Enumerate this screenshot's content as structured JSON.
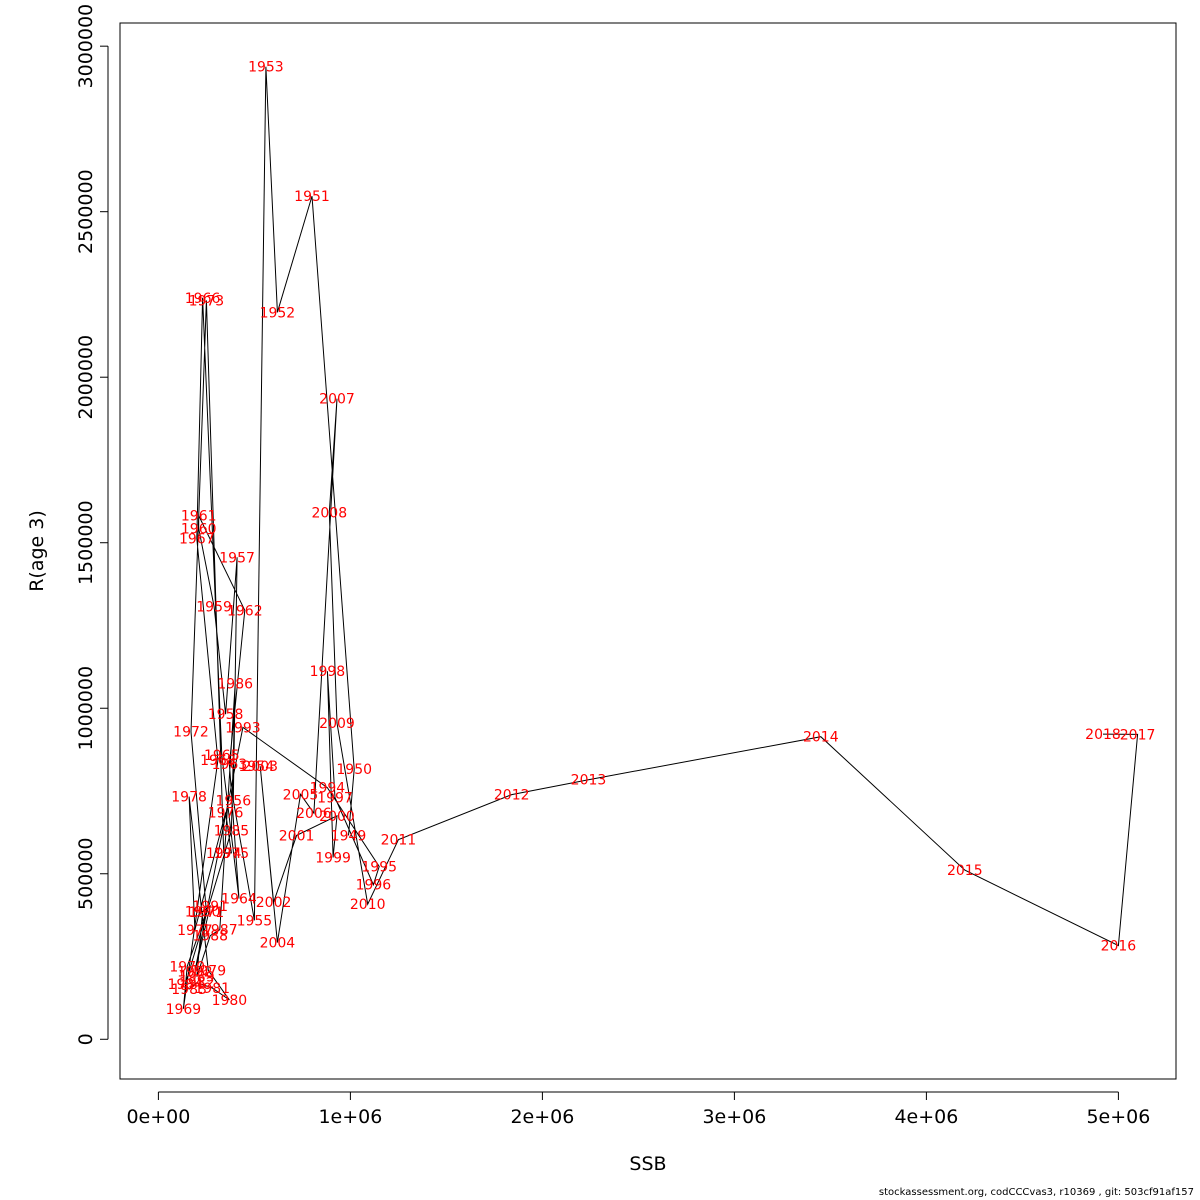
{
  "chart_data": {
    "type": "line",
    "title": "",
    "xlabel": "SSB",
    "ylabel": "R(age 3)",
    "xlim": [
      -200000,
      5300000
    ],
    "ylim": [
      -120000,
      3070000
    ],
    "x_ticks": [
      0,
      1000000,
      2000000,
      3000000,
      4000000,
      5000000
    ],
    "x_tick_labels": [
      "0e+00",
      "1e+06",
      "2e+06",
      "3e+06",
      "4e+06",
      "5e+06"
    ],
    "y_ticks": [
      0,
      500000,
      1000000,
      1500000,
      2000000,
      2500000,
      3000000
    ],
    "y_tick_labels": [
      "0",
      "500000",
      "1000000",
      "1500000",
      "2000000",
      "2500000",
      "3000000"
    ],
    "grid": false,
    "line_color": "#000000",
    "label_color": "#ff0000",
    "points": [
      {
        "year": "1949",
        "x": 990000,
        "y": 616000
      },
      {
        "year": "1950",
        "x": 1020000,
        "y": 816000
      },
      {
        "year": "1951",
        "x": 800000,
        "y": 2547000
      },
      {
        "year": "1952",
        "x": 620000,
        "y": 2196000
      },
      {
        "year": "1953",
        "x": 560000,
        "y": 2938000
      },
      {
        "year": "1954",
        "x": 510000,
        "y": 825000
      },
      {
        "year": "1955",
        "x": 500000,
        "y": 359000
      },
      {
        "year": "1956",
        "x": 390000,
        "y": 722000
      },
      {
        "year": "1957",
        "x": 410000,
        "y": 1456000
      },
      {
        "year": "1958",
        "x": 350000,
        "y": 982000
      },
      {
        "year": "1959",
        "x": 290000,
        "y": 1307000
      },
      {
        "year": "1960",
        "x": 210000,
        "y": 1543000
      },
      {
        "year": "1961",
        "x": 210000,
        "y": 1582000
      },
      {
        "year": "1962",
        "x": 450000,
        "y": 1296000
      },
      {
        "year": "1963",
        "x": 370000,
        "y": 831000
      },
      {
        "year": "1964",
        "x": 420000,
        "y": 425000
      },
      {
        "year": "1965",
        "x": 330000,
        "y": 858000
      },
      {
        "year": "1966",
        "x": 230000,
        "y": 2240000
      },
      {
        "year": "1967",
        "x": 200000,
        "y": 1513000
      },
      {
        "year": "1968",
        "x": 310000,
        "y": 843000
      },
      {
        "year": "1969",
        "x": 130000,
        "y": 92000
      },
      {
        "year": "1970",
        "x": 150000,
        "y": 220000
      },
      {
        "year": "1971",
        "x": 250000,
        "y": 385000
      },
      {
        "year": "1972",
        "x": 170000,
        "y": 929000
      },
      {
        "year": "1973",
        "x": 250000,
        "y": 2232000
      },
      {
        "year": "1974",
        "x": 340000,
        "y": 563000
      },
      {
        "year": "1975",
        "x": 380000,
        "y": 563000
      },
      {
        "year": "1976",
        "x": 350000,
        "y": 685000
      },
      {
        "year": "1977",
        "x": 190000,
        "y": 330000
      },
      {
        "year": "1978",
        "x": 160000,
        "y": 733000
      },
      {
        "year": "1979",
        "x": 260000,
        "y": 208000
      },
      {
        "year": "1980",
        "x": 370000,
        "y": 119000
      },
      {
        "year": "1981",
        "x": 280000,
        "y": 155000
      },
      {
        "year": "1982",
        "x": 200000,
        "y": 171000
      },
      {
        "year": "1983",
        "x": 160000,
        "y": 152000
      },
      {
        "year": "1984",
        "x": 140000,
        "y": 167000
      },
      {
        "year": "1985",
        "x": 380000,
        "y": 630000
      },
      {
        "year": "1986",
        "x": 400000,
        "y": 1074000
      },
      {
        "year": "1987",
        "x": 320000,
        "y": 331000
      },
      {
        "year": "1988",
        "x": 270000,
        "y": 313000
      },
      {
        "year": "1989",
        "x": 200000,
        "y": 189000
      },
      {
        "year": "1990",
        "x": 230000,
        "y": 386000
      },
      {
        "year": "1991",
        "x": 270000,
        "y": 402000
      },
      {
        "year": "1992",
        "x": 190000,
        "y": 205000
      },
      {
        "year": "1993",
        "x": 440000,
        "y": 942000
      },
      {
        "year": "1994",
        "x": 880000,
        "y": 760000
      },
      {
        "year": "1995",
        "x": 1150000,
        "y": 522000
      },
      {
        "year": "1996",
        "x": 1120000,
        "y": 467000
      },
      {
        "year": "1997",
        "x": 920000,
        "y": 730000
      },
      {
        "year": "1998",
        "x": 880000,
        "y": 1112000
      },
      {
        "year": "1999",
        "x": 910000,
        "y": 549000
      },
      {
        "year": "2000",
        "x": 930000,
        "y": 675000
      },
      {
        "year": "2001",
        "x": 720000,
        "y": 616000
      },
      {
        "year": "2002",
        "x": 600000,
        "y": 414000
      },
      {
        "year": "2003",
        "x": 530000,
        "y": 825000
      },
      {
        "year": "2004",
        "x": 620000,
        "y": 292000
      },
      {
        "year": "2005",
        "x": 740000,
        "y": 740000
      },
      {
        "year": "2006",
        "x": 810000,
        "y": 683000
      },
      {
        "year": "2007",
        "x": 930000,
        "y": 1935000
      },
      {
        "year": "2008",
        "x": 890000,
        "y": 1592000
      },
      {
        "year": "2009",
        "x": 930000,
        "y": 955000
      },
      {
        "year": "2010",
        "x": 1090000,
        "y": 408000
      },
      {
        "year": "2011",
        "x": 1250000,
        "y": 603000
      },
      {
        "year": "2012",
        "x": 1840000,
        "y": 739000
      },
      {
        "year": "2013",
        "x": 2240000,
        "y": 784000
      },
      {
        "year": "2014",
        "x": 3450000,
        "y": 914000
      },
      {
        "year": "2015",
        "x": 4200000,
        "y": 511000
      },
      {
        "year": "2016",
        "x": 5000000,
        "y": 283000
      },
      {
        "year": "2017",
        "x": 5100000,
        "y": 921000
      },
      {
        "year": "2018",
        "x": 4920000,
        "y": 922000
      }
    ]
  },
  "footer": "stockassessment.org, codCCCvas3, r10369 , git: 503cf91af157"
}
